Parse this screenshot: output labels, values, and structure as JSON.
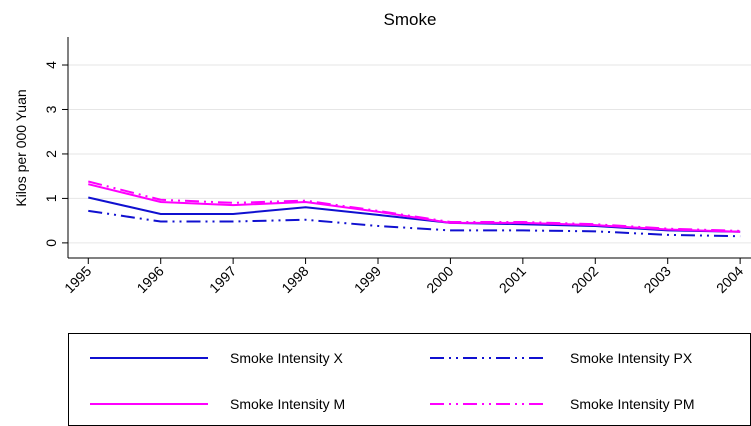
{
  "chart_data": {
    "type": "line",
    "title": "Smoke",
    "y_label": "Kilos per 000 Yuan",
    "x": [
      1995,
      1996,
      1997,
      1998,
      1999,
      2000,
      2001,
      2002,
      2003,
      2004
    ],
    "xlim": [
      1994.72,
      2004.15
    ],
    "xticks": [
      1995,
      1996,
      1997,
      1998,
      1999,
      2000,
      2001,
      2002,
      2003,
      2004
    ],
    "ylim": [
      -0.34,
      4.63
    ],
    "yticks": [
      0,
      1,
      2,
      3,
      4
    ],
    "grid": true,
    "legend": "bottom",
    "series": [
      {
        "name": "Smoke Intensity X",
        "color": "#1010d0",
        "line_style": "solid",
        "values": [
          1.02,
          0.65,
          0.65,
          0.8,
          0.63,
          0.45,
          0.42,
          0.38,
          0.28,
          0.25
        ]
      },
      {
        "name": "Smoke Intensity PX",
        "color": "#1010d0",
        "line_style": "dashdot",
        "values": [
          0.72,
          0.48,
          0.48,
          0.52,
          0.38,
          0.28,
          0.28,
          0.26,
          0.18,
          0.15
        ]
      },
      {
        "name": "Smoke Intensity M",
        "color": "#ff00ff",
        "line_style": "solid",
        "values": [
          1.32,
          0.92,
          0.85,
          0.92,
          0.7,
          0.45,
          0.45,
          0.4,
          0.3,
          0.25
        ]
      },
      {
        "name": "Smoke Intensity PM",
        "color": "#ff00ff",
        "line_style": "dashdot",
        "values": [
          1.38,
          0.97,
          0.9,
          0.95,
          0.72,
          0.47,
          0.47,
          0.42,
          0.32,
          0.27
        ]
      }
    ]
  }
}
